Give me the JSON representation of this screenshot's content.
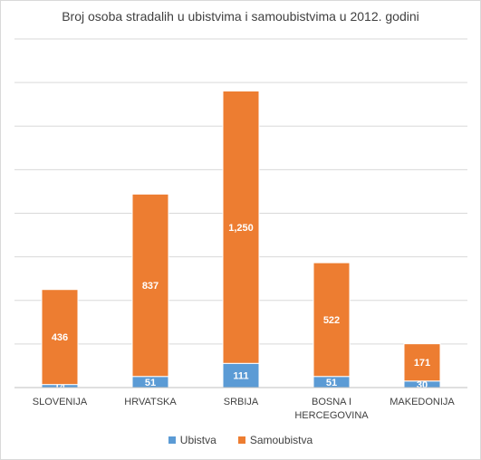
{
  "chart_data": {
    "type": "bar",
    "stacked": true,
    "title": "Broj osoba stradalih u ubistvima i samoubistvima u 2012.  godini",
    "categories": [
      [
        "SLOVENIJA"
      ],
      [
        "HRVATSKA"
      ],
      [
        "SRBIJA"
      ],
      [
        "BOSNA I",
        "HERCEGOVINA"
      ],
      [
        "MAKEDONIJA"
      ]
    ],
    "series": [
      {
        "name": "Ubistva",
        "color": "#5b9bd5",
        "values": [
          14,
          51,
          111,
          51,
          30
        ],
        "labels": [
          "14",
          "51",
          "111",
          "51",
          "30"
        ]
      },
      {
        "name": "Samoubistva",
        "color": "#ed7d31",
        "values": [
          436,
          837,
          1250,
          522,
          171
        ],
        "labels": [
          "436",
          "837",
          "1,250",
          "522",
          "171"
        ]
      }
    ],
    "ylim": [
      0,
      1600
    ],
    "grid": true,
    "legend_position": "bottom"
  }
}
